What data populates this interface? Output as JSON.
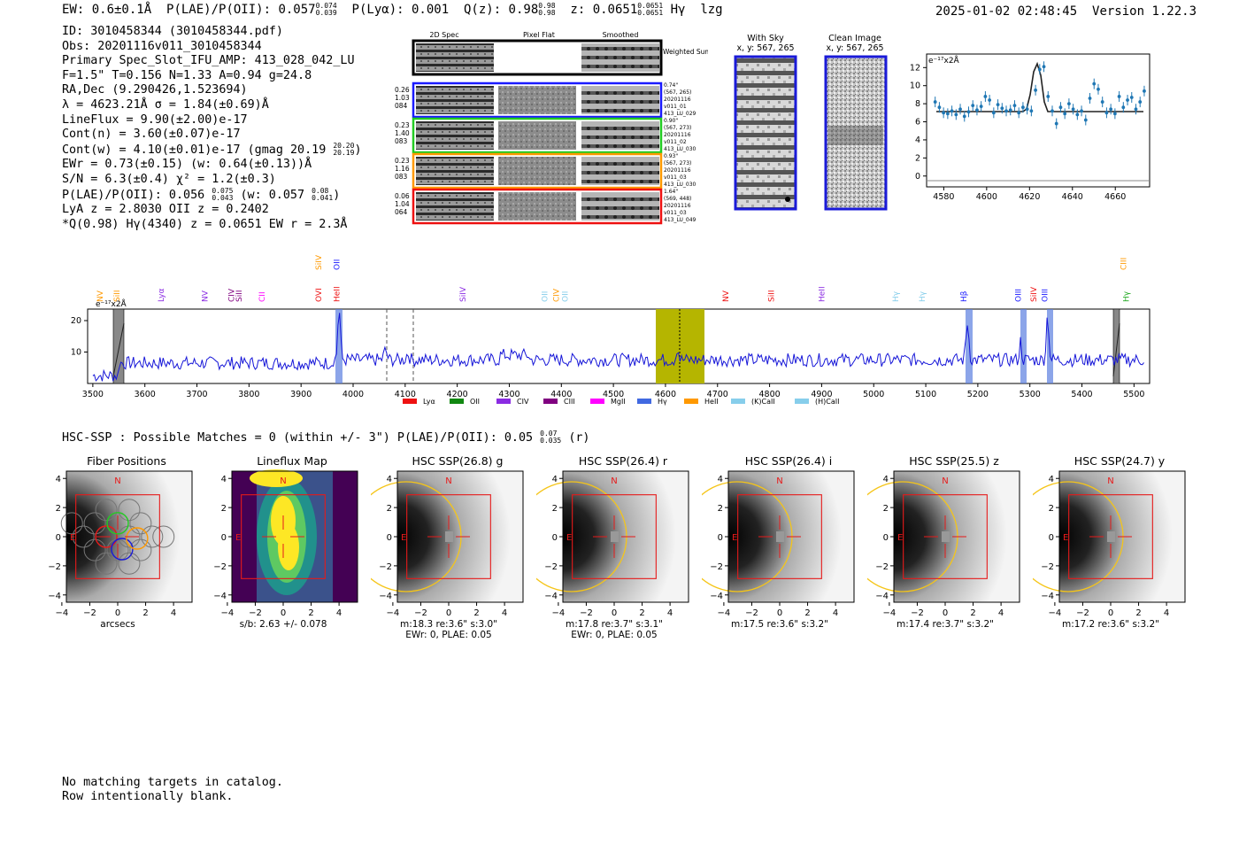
{
  "header": {
    "ew": "EW: 0.6±0.1Å",
    "plae_label": "P(LAE)/P(OII): 0.057",
    "plae_hi": "0.074",
    "plae_lo": "0.039",
    "plya": "P(Lyα): 0.001",
    "q_label": "Q(z): 0.98",
    "q_hi": "0.98",
    "q_lo": "0.98",
    "z_label": "z: 0.0651",
    "z_hi": "0.0651",
    "z_lo": "0.0651",
    "line_name": "Hγ",
    "tag": "lzg",
    "timestamp": "2025-01-02 02:48:45",
    "version": "Version 1.22.3"
  },
  "info": {
    "id": "ID: 3010458344 (3010458344.pdf)",
    "obs": "Obs: 20201116v011_3010458344",
    "primary": "Primary Spec_Slot_IFU_AMP: 413_028_042_LU",
    "fwhm": "F=1.5\"  T=0.156  N=1.33  A=0.94  g=24.8",
    "radec": "RA,Dec (9.290426,1.523694)",
    "lambda": "λ = 4623.21Å  σ = 1.84(±0.69)Å",
    "lineflux": "LineFlux = 9.90(±2.00)e-17",
    "contn": "Cont(n) = 3.60(±0.07)e-17",
    "contw": "Cont(w) = 4.10(±0.01)e-17 (gmag 20.19",
    "gmag_hi": "20.20",
    "gmag_lo": "20.19",
    "ewr": "EWr = 0.73(±0.15) (w: 0.64(±0.13))Å",
    "sn": "S/N = 6.3(±0.4)  χ² = 1.2(±0.3)",
    "plae2": "P(LAE)/P(OII): 0.056",
    "plae2_hi": "0.075",
    "plae2_lo": "0.043",
    "plae2_w": "(w: 0.057",
    "plae2_w_hi": "0.08",
    "plae2_w_lo": "0.041",
    "lya_oii": "LyA z = 2.8030  OII z = 0.2402",
    "q_line": "*Q(0.98) Hγ(4340) z = 0.0651  EW r = 2.3Å"
  },
  "cutouts": {
    "col_headers": [
      "2D Spec",
      "Pixel Flat",
      "Smoothed"
    ],
    "weighted_sum": "Weighted Sum",
    "rows": [
      {
        "left": [
          "0.26",
          "1.03",
          "084"
        ],
        "right": [
          "0.74\"",
          "(567, 265)",
          "20201116",
          "v011_01",
          "413_LU_029"
        ],
        "color": "#1a1aff"
      },
      {
        "left": [
          "0.23",
          "1.40",
          "083"
        ],
        "right": [
          "0.90\"",
          "(567, 273)",
          "20201116",
          "v011_02",
          "413_LU_030"
        ],
        "color": "#22cc22"
      },
      {
        "left": [
          "0.23",
          "1.16",
          "083"
        ],
        "right": [
          "0.93\"",
          "(567, 273)",
          "20201116",
          "v011_03",
          "413_LU_030"
        ],
        "color": "#ff9900"
      },
      {
        "left": [
          "0.06",
          "1.04",
          "064"
        ],
        "right": [
          "1.64\"",
          "(569, 448)",
          "20201116",
          "v011_03",
          "413_LU_049"
        ],
        "color": "#ee1111"
      }
    ]
  },
  "sky": {
    "with_sky_title": "With Sky",
    "with_sky_xy": "x, y: 567, 265",
    "clean_title": "Clean Image",
    "clean_xy": "x, y: 567, 265"
  },
  "zoom_plot": {
    "unit_label": "e⁻¹⁷x2Å",
    "xticks": [
      "4580",
      "4600",
      "4620",
      "4640",
      "4660"
    ],
    "yticks": [
      "0",
      "2",
      "4",
      "6",
      "8",
      "10",
      "12"
    ]
  },
  "spectrum": {
    "unit_label": "e⁻¹⁷x2Å",
    "yticks": [
      "10",
      "20"
    ],
    "xticks": [
      "3500",
      "3600",
      "3700",
      "3800",
      "3900",
      "4000",
      "4100",
      "4200",
      "4300",
      "4400",
      "4500",
      "4600",
      "4700",
      "4800",
      "4900",
      "5000",
      "5100",
      "5200",
      "5300",
      "5400",
      "5500"
    ],
    "line_labels": [
      {
        "text": "NV",
        "wave": 3519,
        "color": "#ff9900",
        "row": 0
      },
      {
        "text": "SiII",
        "wave": 3551,
        "color": "#ff9900",
        "row": 0
      },
      {
        "text": "Lyα",
        "wave": 3636,
        "color": "#8a2be2",
        "row": 0
      },
      {
        "text": "NV",
        "wave": 3720,
        "color": "#8a2be2",
        "row": 0
      },
      {
        "text": "CIV",
        "wave": 3771,
        "color": "#800080",
        "row": 0
      },
      {
        "text": "SiII",
        "wave": 3786,
        "color": "#800080",
        "row": 0
      },
      {
        "text": "CII",
        "wave": 3830,
        "color": "#ff00ff",
        "row": 0
      },
      {
        "text": "OVI",
        "wave": 3939,
        "color": "#ee1111",
        "row": 0
      },
      {
        "text": "SiIV",
        "wave": 3939,
        "color": "#ff9900",
        "row": 1
      },
      {
        "text": "HeII",
        "wave": 3974,
        "color": "#ee1111",
        "row": 0
      },
      {
        "text": "OII",
        "wave": 3974,
        "color": "#1a1aff",
        "row": 1
      },
      {
        "text": "SiIV",
        "wave": 4216,
        "color": "#8a2be2",
        "row": 0
      },
      {
        "text": "OII",
        "wave": 4373,
        "color": "#87ceeb",
        "row": 0
      },
      {
        "text": "CIV",
        "wave": 4395,
        "color": "#ff9900",
        "row": 0
      },
      {
        "text": "OII",
        "wave": 4412,
        "color": "#87ceeb",
        "row": 0
      },
      {
        "text": "NV",
        "wave": 4721,
        "color": "#ee1111",
        "row": 0
      },
      {
        "text": "SiII",
        "wave": 4808,
        "color": "#ee1111",
        "row": 0
      },
      {
        "text": "HeII",
        "wave": 4905,
        "color": "#8a2be2",
        "row": 0
      },
      {
        "text": "Hγ",
        "wave": 5047,
        "color": "#87ceeb",
        "row": 0
      },
      {
        "text": "Hγ",
        "wave": 5098,
        "color": "#87ceeb",
        "row": 0
      },
      {
        "text": "Hβ",
        "wave": 5178,
        "color": "#1a1aff",
        "row": 0
      },
      {
        "text": "OIII",
        "wave": 5283,
        "color": "#1a1aff",
        "row": 0
      },
      {
        "text": "SiIV",
        "wave": 5312,
        "color": "#ee1111",
        "row": 0
      },
      {
        "text": "OIII",
        "wave": 5334,
        "color": "#1a1aff",
        "row": 0
      },
      {
        "text": "CIII",
        "wave": 5485,
        "color": "#ff9900",
        "row": 1
      },
      {
        "text": "Hγ",
        "wave": 5490,
        "color": "#22aa22",
        "row": 0
      }
    ],
    "legend": [
      {
        "label": "Lyα",
        "color": "#ee1111"
      },
      {
        "label": "OII",
        "color": "#118811"
      },
      {
        "label": "CIV",
        "color": "#8a2be2"
      },
      {
        "label": "CIII",
        "color": "#800080"
      },
      {
        "label": "MgII",
        "color": "#ff00ff"
      },
      {
        "label": "Hγ",
        "color": "#4169e1"
      },
      {
        "label": "HeII",
        "color": "#ff9900"
      },
      {
        "label": "(K)CaII",
        "color": "#87ceeb"
      },
      {
        "label": "(H)CaII",
        "color": "#87ceeb"
      }
    ]
  },
  "hsc": {
    "title": "HSC-SSP : Possible Matches = 0 (within +/- 3\")  P(LAE)/P(OII): 0.05",
    "title_hi": "0.07",
    "title_lo": "0.035",
    "title_suffix": "(r)",
    "panels": [
      {
        "title": "Fiber Positions",
        "caption1": "arcsecs",
        "caption2": "",
        "kind": "fibers"
      },
      {
        "title": "Lineflux Map",
        "caption1": "s/b: 2.63 +/- 0.078",
        "caption2": "",
        "kind": "lineflux"
      },
      {
        "title": "HSC SSP(26.8) g",
        "caption1": "m:18.3  re:3.6\"  s:3.0\"",
        "caption2": "EWr: 0, PLAE: 0.05",
        "kind": "hsc"
      },
      {
        "title": "HSC SSP(26.4) r",
        "caption1": "m:17.8  re:3.7\"  s:3.1\"",
        "caption2": "EWr: 0, PLAE: 0.05",
        "kind": "hsc"
      },
      {
        "title": "HSC SSP(26.4) i",
        "caption1": "m:17.5  re:3.6\"  s:3.2\"",
        "caption2": "",
        "kind": "hsc"
      },
      {
        "title": "HSC SSP(25.5) z",
        "caption1": "m:17.4  re:3.7\"  s:3.2\"",
        "caption2": "",
        "kind": "hsc"
      },
      {
        "title": "HSC SSP(24.7) y",
        "caption1": "m:17.2  re:3.6\"  s:3.2\"",
        "caption2": "",
        "kind": "hsc"
      }
    ],
    "north": "N",
    "east": "E",
    "ticks": [
      "−4",
      "−2",
      "0",
      "2",
      "4"
    ]
  },
  "footer": {
    "line1": "No matching targets in catalog.",
    "line2": "Row intentionally blank."
  }
}
